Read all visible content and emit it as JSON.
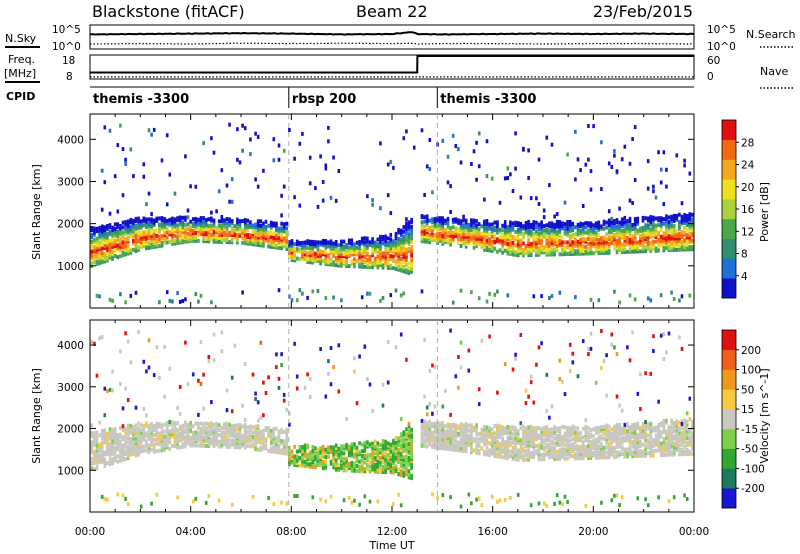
{
  "header": {
    "station": "Blackstone (fitACF)",
    "beam": "Beam 22",
    "date": "23/Feb/2015"
  },
  "top_panels": {
    "sky_label": "N.Sky",
    "search_label": "N.Search",
    "sky_ticks": [
      "10^5",
      "10^0"
    ],
    "freq_label_1": "Freq.",
    "freq_label_2": "[MHz]",
    "freq_ticks": [
      "18",
      "8"
    ],
    "nave_label": "Nave",
    "nave_ticks": [
      "60",
      "0"
    ],
    "cpid_label": "CPID"
  },
  "chart_data": [
    {
      "type": "line",
      "name": "noise-panel",
      "x": [
        0,
        2,
        4,
        6,
        8,
        10,
        12,
        12.8,
        13,
        14,
        16,
        18,
        20,
        22,
        24
      ],
      "series": [
        {
          "name": "N.Sky",
          "values": [
            3.4,
            3.5,
            3.6,
            3.7,
            3.6,
            3.4,
            3.5,
            4.0,
            3.5,
            3.4,
            3.5,
            3.6,
            3.5,
            3.6,
            3.5
          ]
        },
        {
          "name": "N.Search",
          "values": [
            1.0,
            1.1,
            1.0,
            1.2,
            1.1,
            1.2,
            1.1,
            1.2,
            1.0,
            1.1,
            1.1,
            1.0,
            1.1,
            1.1,
            1.0
          ]
        }
      ]
    },
    {
      "type": "line",
      "name": "freq-nave-panel",
      "x": [
        0,
        13,
        13.01,
        24
      ],
      "series": [
        {
          "name": "Freq",
          "values": [
            10.5,
            10.5,
            18,
            18
          ]
        },
        {
          "name": "Nave",
          "values": [
            3,
            3,
            3,
            3
          ]
        }
      ]
    },
    {
      "type": "table",
      "name": "cpid-segments",
      "segments": [
        {
          "label": "themis -3300",
          "start": 0,
          "end": 7.9
        },
        {
          "label": "rbsp 200",
          "start": 7.9,
          "end": 13.8
        },
        {
          "label": "themis -3300",
          "start": 13.8,
          "end": 24
        }
      ]
    },
    {
      "type": "heatmap",
      "name": "power",
      "ylabel": "Slant Range [km]",
      "ylim": [
        0,
        4600
      ],
      "xlim": [
        0,
        24
      ],
      "yticks": [
        1000,
        2000,
        3000,
        4000
      ],
      "colorbar_label": "Power [dB]",
      "colorbar_ticks": [
        "28",
        "24",
        "20",
        "16",
        "12",
        "8",
        "4"
      ],
      "colors": [
        "#1010c8",
        "#1f6fd8",
        "#2f8f6f",
        "#4aa84a",
        "#a8d23c",
        "#f0e01c",
        "#f4a81c",
        "#f06a14",
        "#e01010"
      ],
      "bands": [
        {
          "x": [
            0,
            2,
            4,
            6,
            7.8
          ],
          "lo": [
            950,
            1350,
            1550,
            1500,
            1350
          ],
          "hi": [
            1850,
            2100,
            2100,
            2050,
            1950
          ],
          "level": 0.55
        },
        {
          "x": [
            7.8,
            10,
            12,
            12.8
          ],
          "lo": [
            1100,
            950,
            900,
            750
          ],
          "hi": [
            1550,
            1550,
            1700,
            2100
          ],
          "level": 0.5
        },
        {
          "x": [
            13,
            15,
            17,
            20,
            24
          ],
          "lo": [
            1550,
            1400,
            1200,
            1250,
            1350
          ],
          "hi": [
            2150,
            2050,
            2000,
            2000,
            2200
          ],
          "level": 0.45
        }
      ]
    },
    {
      "type": "heatmap",
      "name": "velocity",
      "xlabel": "Time UT",
      "ylabel": "Slant Range [km]",
      "ylim": [
        0,
        4600
      ],
      "xlim": [
        0,
        24
      ],
      "yticks": [
        1000,
        2000,
        3000,
        4000
      ],
      "xticks": [
        "00:00",
        "04:00",
        "08:00",
        "12:00",
        "16:00",
        "20:00",
        "00:00"
      ],
      "colorbar_label": "Velocity [m s^-1]",
      "colorbar_ticks": [
        "200",
        "100",
        "50",
        "15",
        "-15",
        "-50",
        "-100",
        "-200"
      ],
      "colors": [
        "#1818d0",
        "#1a7a5a",
        "#2fa82f",
        "#7ed04a",
        "#c8c8c0",
        "#f8c840",
        "#f0981c",
        "#f0601c",
        "#e01010"
      ]
    }
  ]
}
